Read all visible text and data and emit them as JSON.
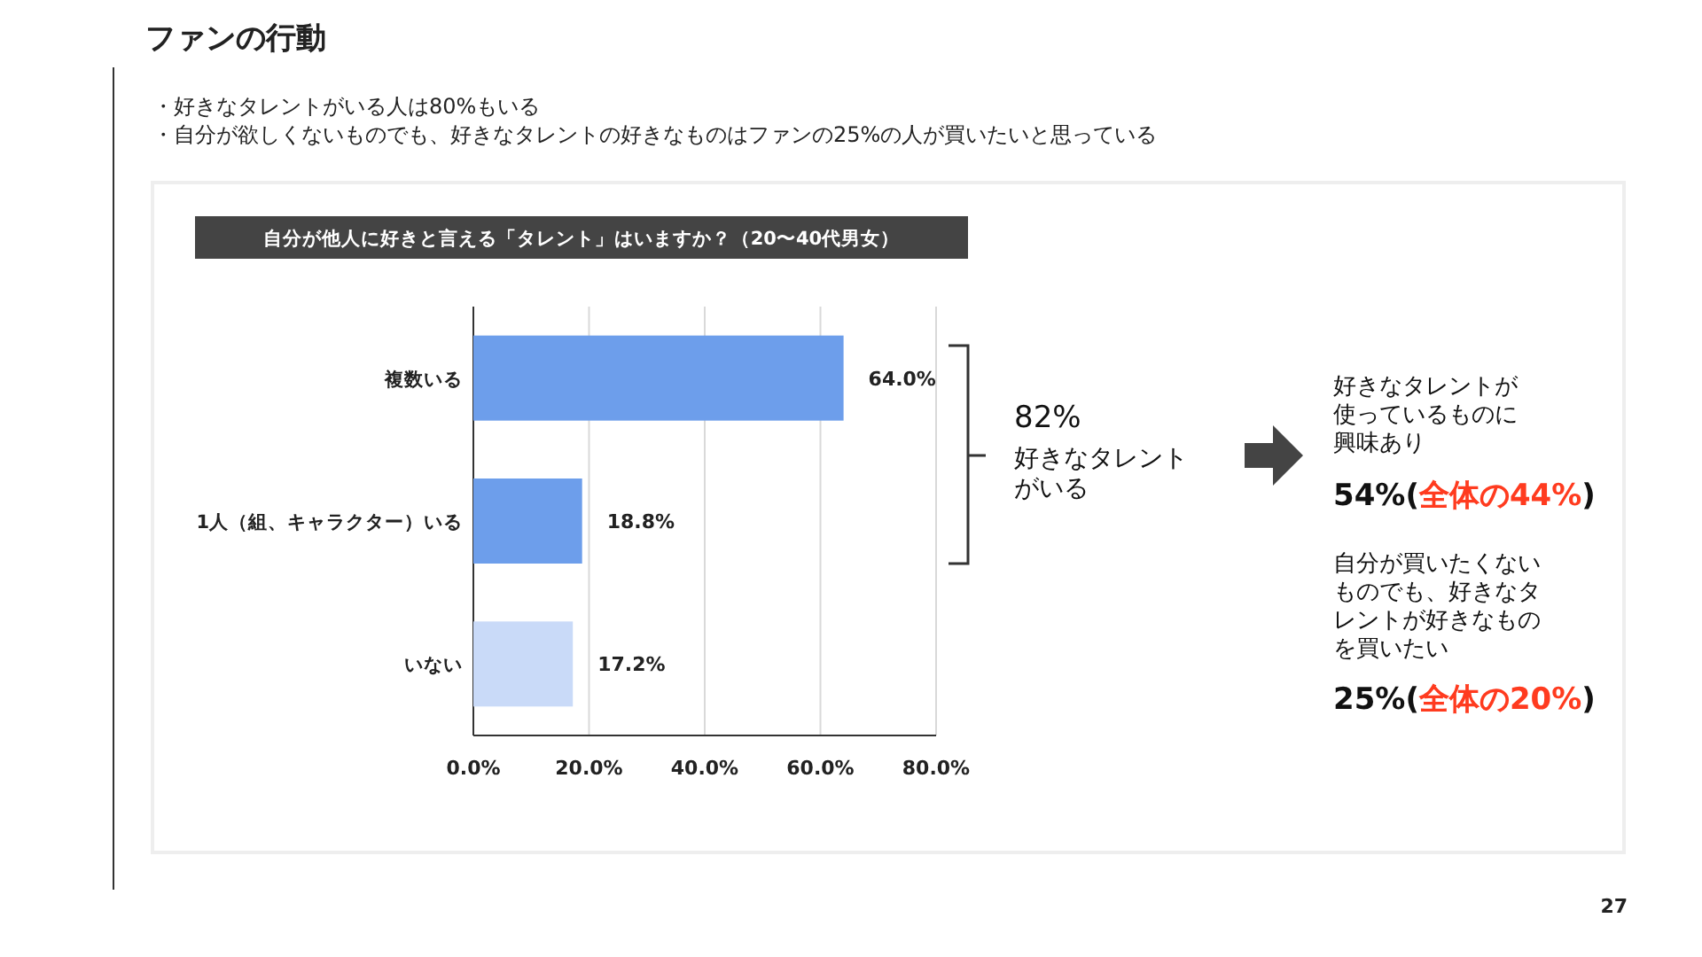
{
  "chart_data": {
    "type": "bar",
    "orientation": "horizontal",
    "title": "自分が他人に好きと言える「タレント」はいますか？（20〜40代男女）",
    "categories": [
      "複数いる",
      "1人（組、キャラクター）いる",
      "いない"
    ],
    "values": [
      64.0,
      18.8,
      17.2
    ],
    "colors": [
      "#6d9eeb",
      "#6d9eeb",
      "#c9daf8"
    ],
    "value_labels": [
      "64.0%",
      "18.8%",
      "17.2%"
    ],
    "xlim": [
      0,
      80
    ],
    "xticks": [
      {
        "value": 0,
        "label": "0.0%"
      },
      {
        "value": 20,
        "label": "20.0%"
      },
      {
        "value": 40,
        "label": "40.0%"
      },
      {
        "value": 60,
        "label": "60.0%"
      },
      {
        "value": 80,
        "label": "80.0%"
      }
    ],
    "grid": "x",
    "annotations": [
      "ファンの行動",
      "・好きなタレントがいる人は80%もいる",
      "・自分が欲しくないものでも、好きなタレントの好きなものはファンの25%の人が買いたいと思っている",
      "82%",
      "好きなタレントがいる",
      "好きなタレントが使っているものに興味あり",
      "54%(",
      "全体の44%",
      ")",
      "自分が買いたくないものでも、好きなタレントが好きなものを買いたい",
      "25%(",
      "全体の20%",
      ")",
      "27"
    ]
  }
}
